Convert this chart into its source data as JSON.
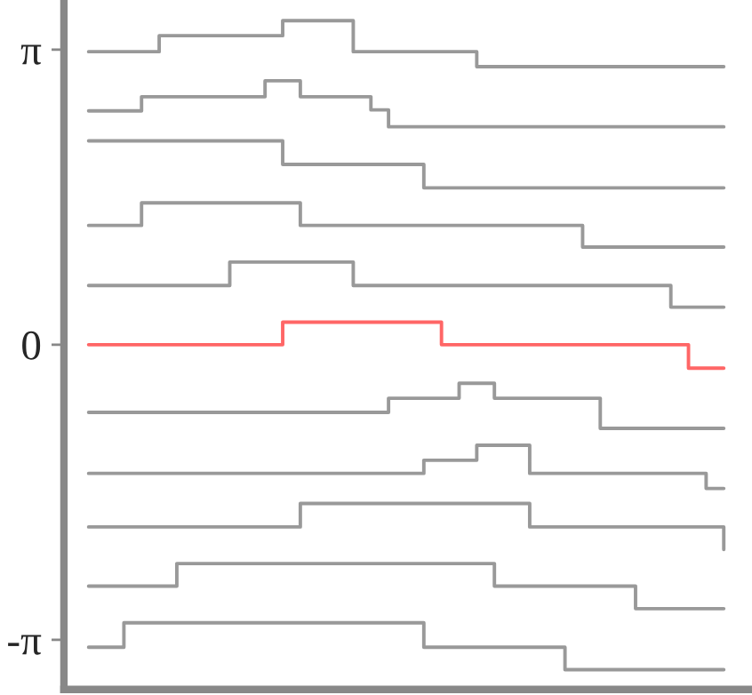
{
  "chart_data": {
    "type": "step",
    "categories": [
      null,
      null,
      null,
      null,
      null,
      null,
      null,
      null,
      null,
      null,
      null,
      null,
      null,
      null,
      null,
      null,
      null,
      null,
      null,
      null,
      null,
      null,
      null,
      null,
      null,
      null,
      null,
      null,
      null,
      null,
      null,
      null,
      null,
      null,
      null,
      null,
      null
    ],
    "series": [
      {
        "color": "#999999",
        "values": [
          3.12,
          3.12,
          3.12,
          3.12,
          3.29,
          3.29,
          3.29,
          3.29,
          3.29,
          3.29,
          3.29,
          3.45,
          3.45,
          3.45,
          3.45,
          3.12,
          3.12,
          3.12,
          3.12,
          3.12,
          3.12,
          3.12,
          2.96,
          2.96,
          2.96,
          2.96,
          2.96,
          2.96,
          2.96,
          2.96,
          2.96,
          2.96,
          2.96,
          2.96,
          2.96,
          2.96,
          2.96
        ]
      },
      {
        "color": "#999999",
        "values": [
          2.49,
          2.49,
          2.49,
          2.64,
          2.64,
          2.64,
          2.64,
          2.64,
          2.64,
          2.64,
          2.81,
          2.81,
          2.64,
          2.64,
          2.64,
          2.64,
          2.5,
          2.32,
          2.32,
          2.32,
          2.32,
          2.32,
          2.32,
          2.32,
          2.32,
          2.32,
          2.32,
          2.32,
          2.32,
          2.32,
          2.32,
          2.32,
          2.32,
          2.32,
          2.32,
          2.32,
          2.32
        ]
      },
      {
        "color": "#999999",
        "values": [
          2.17,
          2.17,
          2.17,
          2.17,
          2.17,
          2.17,
          2.17,
          2.17,
          2.17,
          2.17,
          2.17,
          1.92,
          1.92,
          1.92,
          1.92,
          1.92,
          1.92,
          1.92,
          1.92,
          1.67,
          1.67,
          1.67,
          1.67,
          1.67,
          1.67,
          1.67,
          1.67,
          1.67,
          1.67,
          1.67,
          1.67,
          1.67,
          1.67,
          1.67,
          1.67,
          1.67,
          1.67
        ]
      },
      {
        "color": "#999999",
        "values": [
          1.27,
          1.27,
          1.27,
          1.51,
          1.51,
          1.51,
          1.51,
          1.51,
          1.51,
          1.51,
          1.51,
          1.51,
          1.27,
          1.27,
          1.27,
          1.27,
          1.27,
          1.27,
          1.27,
          1.27,
          1.27,
          1.27,
          1.27,
          1.27,
          1.27,
          1.27,
          1.27,
          1.27,
          1.04,
          1.04,
          1.04,
          1.04,
          1.04,
          1.04,
          1.04,
          1.04,
          1.04
        ]
      },
      {
        "color": "#999999",
        "values": [
          0.63,
          0.63,
          0.63,
          0.63,
          0.63,
          0.63,
          0.63,
          0.63,
          0.88,
          0.88,
          0.88,
          0.88,
          0.88,
          0.88,
          0.88,
          0.63,
          0.63,
          0.63,
          0.63,
          0.63,
          0.63,
          0.63,
          0.63,
          0.63,
          0.63,
          0.63,
          0.63,
          0.63,
          0.63,
          0.63,
          0.63,
          0.63,
          0.63,
          0.4,
          0.4,
          0.4,
          0.4
        ]
      },
      {
        "color": "#ff6666",
        "values": [
          0,
          0,
          0,
          0,
          0,
          0,
          0,
          0,
          0,
          0,
          0,
          0.24,
          0.24,
          0.24,
          0.24,
          0.24,
          0.24,
          0.24,
          0.24,
          0.24,
          0,
          0,
          0,
          0,
          0,
          0,
          0,
          0,
          0,
          0,
          0,
          0,
          0,
          0,
          -0.25,
          -0.25,
          -0.25
        ]
      },
      {
        "color": "#999999",
        "values": [
          -0.72,
          -0.72,
          -0.72,
          -0.72,
          -0.72,
          -0.72,
          -0.72,
          -0.72,
          -0.72,
          -0.72,
          -0.72,
          -0.72,
          -0.72,
          -0.72,
          -0.72,
          -0.72,
          -0.72,
          -0.57,
          -0.57,
          -0.57,
          -0.57,
          -0.41,
          -0.41,
          -0.57,
          -0.57,
          -0.57,
          -0.57,
          -0.57,
          -0.57,
          -0.89,
          -0.89,
          -0.89,
          -0.89,
          -0.89,
          -0.89,
          -0.89,
          -0.89
        ]
      },
      {
        "color": "#999999",
        "values": [
          -1.37,
          -1.37,
          -1.37,
          -1.37,
          -1.37,
          -1.37,
          -1.37,
          -1.37,
          -1.37,
          -1.37,
          -1.37,
          -1.37,
          -1.37,
          -1.37,
          -1.37,
          -1.37,
          -1.37,
          -1.37,
          -1.37,
          -1.23,
          -1.23,
          -1.23,
          -1.07,
          -1.07,
          -1.07,
          -1.37,
          -1.37,
          -1.37,
          -1.37,
          -1.37,
          -1.37,
          -1.37,
          -1.37,
          -1.37,
          -1.37,
          -1.53,
          -1.53
        ]
      },
      {
        "color": "#999999",
        "values": [
          -1.94,
          -1.94,
          -1.94,
          -1.94,
          -1.94,
          -1.94,
          -1.94,
          -1.94,
          -1.94,
          -1.94,
          -1.94,
          -1.94,
          -1.69,
          -1.69,
          -1.69,
          -1.69,
          -1.69,
          -1.69,
          -1.69,
          -1.69,
          -1.69,
          -1.69,
          -1.69,
          -1.69,
          -1.69,
          -1.94,
          -1.94,
          -1.94,
          -1.94,
          -1.94,
          -1.94,
          -1.94,
          -1.94,
          -1.94,
          -1.94,
          -1.94,
          -2.18
        ]
      },
      {
        "color": "#999999",
        "values": [
          -2.57,
          -2.57,
          -2.57,
          -2.57,
          -2.57,
          -2.33,
          -2.33,
          -2.33,
          -2.33,
          -2.33,
          -2.33,
          -2.33,
          -2.33,
          -2.33,
          -2.33,
          -2.33,
          -2.33,
          -2.33,
          -2.33,
          -2.33,
          -2.33,
          -2.33,
          -2.33,
          -2.57,
          -2.57,
          -2.57,
          -2.57,
          -2.57,
          -2.57,
          -2.57,
          -2.57,
          -2.81,
          -2.81,
          -2.81,
          -2.81,
          -2.81,
          -2.81
        ]
      },
      {
        "color": "#999999",
        "values": [
          -3.22,
          -3.22,
          -2.96,
          -2.96,
          -2.96,
          -2.96,
          -2.96,
          -2.96,
          -2.96,
          -2.96,
          -2.96,
          -2.96,
          -2.96,
          -2.96,
          -2.96,
          -2.96,
          -2.96,
          -2.96,
          -2.96,
          -3.22,
          -3.22,
          -3.22,
          -3.22,
          -3.22,
          -3.22,
          -3.22,
          -3.22,
          -3.46,
          -3.46,
          -3.46,
          -3.46,
          -3.46,
          -3.46,
          -3.46,
          -3.46,
          -3.46,
          -3.46
        ]
      }
    ],
    "ylim": [
      -3.67,
      3.67
    ],
    "yticks": [
      {
        "value": 3.14159,
        "label": "π"
      },
      0,
      {
        "value": -3.14159,
        "label": "-π"
      }
    ],
    "tick_labels": "y"
  }
}
